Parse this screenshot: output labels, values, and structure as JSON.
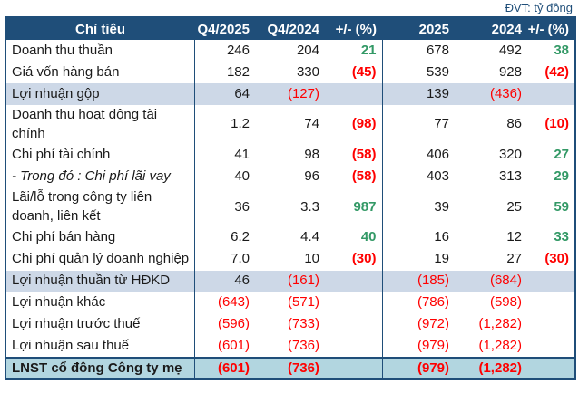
{
  "unit_label": "ĐVT: tỷ đồng",
  "colors": {
    "header_bg": "#1F4E79",
    "band_bg": "#CDD8E7",
    "total_bg": "#B2D6E0",
    "positive": "#339966",
    "negative": "#FF0000",
    "border": "#1F4E79"
  },
  "chart_data": {
    "type": "table",
    "unit_label": "ĐVT: tỷ đồng",
    "columns": [
      "Chỉ tiêu",
      "Q4/2025",
      "Q4/2024",
      "+/- (%)",
      "2025",
      "2024",
      "+/- (%)"
    ],
    "rows": [
      {
        "label": "Doanh thu thuần",
        "values": [
          "246",
          "204",
          "21",
          "678",
          "492",
          "38"
        ],
        "style": "normal"
      },
      {
        "label": "Giá vốn hàng bán",
        "values": [
          "182",
          "330",
          "(45)",
          "539",
          "928",
          "(42)"
        ],
        "style": "normal"
      },
      {
        "label": "Lợi nhuận gộp",
        "values": [
          "64",
          "(127)",
          "",
          "139",
          "(436)",
          ""
        ],
        "style": "band"
      },
      {
        "label": "Doanh thu hoạt động tài chính",
        "values": [
          "1.2",
          "74",
          "(98)",
          "77",
          "86",
          "(10)"
        ],
        "style": "normal"
      },
      {
        "label": "Chi phí tài chính",
        "values": [
          "41",
          "98",
          "(58)",
          "406",
          "320",
          "27"
        ],
        "style": "normal"
      },
      {
        "label": "- Trong đó : Chi phí lãi vay",
        "values": [
          "40",
          "96",
          "(58)",
          "403",
          "313",
          "29"
        ],
        "style": "italic"
      },
      {
        "label": "Lãi/lỗ trong công ty liên doanh, liên kết",
        "values": [
          "36",
          "3.3",
          "987",
          "39",
          "25",
          "59"
        ],
        "style": "normal"
      },
      {
        "label": "Chi phí bán hàng",
        "values": [
          "6.2",
          "4.4",
          "40",
          "16",
          "12",
          "33"
        ],
        "style": "normal"
      },
      {
        "label": "Chi phí quản lý doanh nghiệp",
        "values": [
          "7.0",
          "10",
          "(30)",
          "19",
          "27",
          "(30)"
        ],
        "style": "normal"
      },
      {
        "label": "Lợi nhuận thuần từ HĐKD",
        "values": [
          "46",
          "(161)",
          "",
          "(185)",
          "(684)",
          ""
        ],
        "style": "band"
      },
      {
        "label": "Lợi nhuận khác",
        "values": [
          "(643)",
          "(571)",
          "",
          "(786)",
          "(598)",
          ""
        ],
        "style": "normal"
      },
      {
        "label": "Lợi nhuận trước thuế",
        "values": [
          "(596)",
          "(733)",
          "",
          "(972)",
          "(1,282)",
          ""
        ],
        "style": "normal"
      },
      {
        "label": "Lợi nhuận sau thuế",
        "values": [
          "(601)",
          "(736)",
          "",
          "(979)",
          "(1,282)",
          ""
        ],
        "style": "normal"
      },
      {
        "label": "LNST cổ đông Công ty mẹ",
        "values": [
          "(601)",
          "(736)",
          "",
          "(979)",
          "(1,282)",
          ""
        ],
        "style": "total"
      }
    ]
  }
}
